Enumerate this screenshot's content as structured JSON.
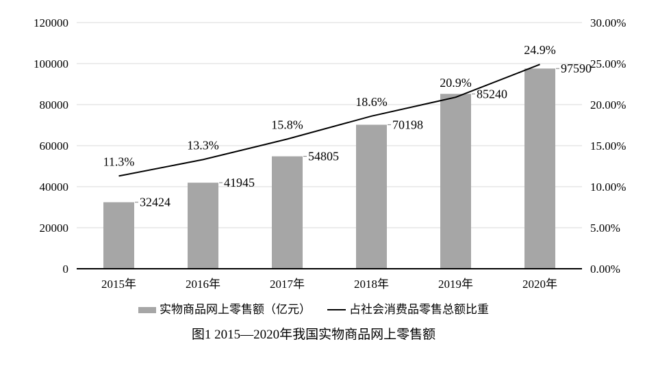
{
  "figure": {
    "title": "图1 2015—2020年我国实物商品网上零售额"
  },
  "chart_data": {
    "type": "combo",
    "title": "图1 2015—2020年我国实物商品网上零售额",
    "categories": [
      "2015年",
      "2016年",
      "2017年",
      "2018年",
      "2019年",
      "2020年"
    ],
    "series": [
      {
        "name": "实物商品网上零售额（亿元）",
        "type": "bar",
        "axis": "left",
        "values": [
          32424,
          41945,
          54805,
          70198,
          85240,
          97590
        ],
        "labels": [
          "32424",
          "41945",
          "54805",
          "70198",
          "85240",
          "97590"
        ],
        "color": "#a6a6a6"
      },
      {
        "name": "占社会消费品零售总额比重",
        "type": "line",
        "axis": "right",
        "values": [
          11.3,
          13.3,
          15.8,
          18.6,
          20.9,
          24.9
        ],
        "labels": [
          "11.3%",
          "13.3%",
          "15.8%",
          "18.6%",
          "20.9%",
          "24.9%"
        ],
        "color": "#000000"
      }
    ],
    "left_axis": {
      "min": 0,
      "max": 120000,
      "step": 20000,
      "tick_labels": [
        "0",
        "20000",
        "40000",
        "60000",
        "80000",
        "100000",
        "120000"
      ]
    },
    "right_axis": {
      "min": 0,
      "max": 30,
      "step": 5,
      "tick_labels": [
        "0.00%",
        "5.00%",
        "10.00%",
        "15.00%",
        "20.00%",
        "25.00%",
        "30.00%"
      ]
    },
    "grid": true,
    "legend_position": "bottom",
    "colors": {
      "gridline": "#d9d9d9",
      "axis_line": "#000000",
      "text": "#000000",
      "leader": "#7f7f7f",
      "background": "#ffffff"
    }
  }
}
